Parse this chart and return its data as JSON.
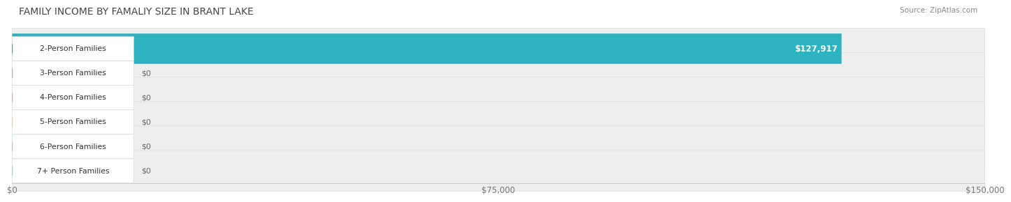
{
  "title": "FAMILY INCOME BY FAMALIY SIZE IN BRANT LAKE",
  "source": "Source: ZipAtlas.com",
  "categories": [
    "2-Person Families",
    "3-Person Families",
    "4-Person Families",
    "5-Person Families",
    "6-Person Families",
    "7+ Person Families"
  ],
  "values": [
    127917,
    0,
    0,
    0,
    0,
    0
  ],
  "bar_colors": [
    "#2db3c0",
    "#a8a8d8",
    "#f29ab0",
    "#f5c98a",
    "#f0a8b0",
    "#a8c4e0"
  ],
  "label_dot_colors": [
    "#2db3c0",
    "#a8a8d8",
    "#f29ab0",
    "#f5c98a",
    "#f0a8b0",
    "#a8c4e0"
  ],
  "xlim": [
    0,
    150000
  ],
  "xtick_labels": [
    "$0",
    "$75,000",
    "$150,000"
  ],
  "bar_height": 0.62,
  "row_bg_color": "#f0f0f0",
  "value_label_color": "#ffffff",
  "zero_label_color": "#666666",
  "title_color": "#444444",
  "source_color": "#888888"
}
